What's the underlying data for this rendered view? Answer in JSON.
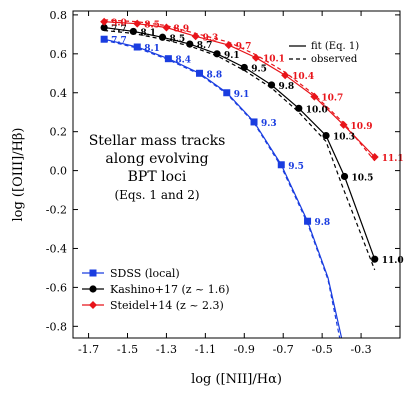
{
  "chart_data": {
    "type": "line",
    "xlabel": "log ([NII]/Hα)",
    "ylabel": "log ([OIII]/Hβ)",
    "xlim": [
      -1.78,
      -0.1
    ],
    "ylim": [
      -0.86,
      0.82
    ],
    "xticks": [
      "-1.7",
      "-1.5",
      "-1.3",
      "-1.1",
      "-0.9",
      "-0.7",
      "-0.5",
      "-0.3"
    ],
    "yticks": [
      "0.8",
      "0.6",
      "0.4",
      "0.2",
      "0.0",
      "-0.2",
      "-0.4",
      "-0.6",
      "-0.8"
    ],
    "annotation": [
      "Stellar mass tracks",
      "along evolving",
      "BPT loci"
    ],
    "annotation_sub": "(Eqs. 1 and 2)",
    "line_styles_legend": [
      {
        "label": "fit (Eq. 1)",
        "style": "solid"
      },
      {
        "label": "observed",
        "style": "dashed"
      }
    ],
    "legend_placement": "lower-left",
    "series": [
      {
        "name": "SDSS (local)",
        "color": "#1a3de0",
        "marker": "square",
        "points": [
          {
            "x": -1.62,
            "y": 0.675,
            "mass": "7.7"
          },
          {
            "x": -1.45,
            "y": 0.635,
            "mass": "8.1"
          },
          {
            "x": -1.29,
            "y": 0.575,
            "mass": "8.4"
          },
          {
            "x": -1.13,
            "y": 0.5,
            "mass": "8.8"
          },
          {
            "x": -0.99,
            "y": 0.4,
            "mass": "9.1"
          },
          {
            "x": -0.85,
            "y": 0.25,
            "mass": "9.3"
          },
          {
            "x": -0.71,
            "y": 0.03,
            "mass": "9.5"
          },
          {
            "x": -0.575,
            "y": -0.26,
            "mass": "9.8"
          }
        ],
        "fit_line": [
          {
            "x": -1.62,
            "y": 0.675
          },
          {
            "x": -1.45,
            "y": 0.635
          },
          {
            "x": -1.29,
            "y": 0.575
          },
          {
            "x": -1.13,
            "y": 0.5
          },
          {
            "x": -0.99,
            "y": 0.4
          },
          {
            "x": -0.85,
            "y": 0.25
          },
          {
            "x": -0.71,
            "y": 0.03
          },
          {
            "x": -0.575,
            "y": -0.26
          },
          {
            "x": -0.47,
            "y": -0.55
          },
          {
            "x": -0.4,
            "y": -0.86
          }
        ],
        "observed_line": [
          {
            "x": -1.62,
            "y": 0.67
          },
          {
            "x": -1.45,
            "y": 0.63
          },
          {
            "x": -1.29,
            "y": 0.57
          },
          {
            "x": -1.13,
            "y": 0.495
          },
          {
            "x": -0.99,
            "y": 0.395
          },
          {
            "x": -0.85,
            "y": 0.245
          },
          {
            "x": -0.71,
            "y": 0.02
          },
          {
            "x": -0.575,
            "y": -0.27
          },
          {
            "x": -0.47,
            "y": -0.56
          },
          {
            "x": -0.41,
            "y": -0.86
          }
        ]
      },
      {
        "name": "Kashino+17 (z ~ 1.6)",
        "color": "#000000",
        "marker": "circle",
        "points": [
          {
            "x": -1.62,
            "y": 0.735,
            "mass": "7.7"
          },
          {
            "x": -1.47,
            "y": 0.715,
            "mass": "8.1"
          },
          {
            "x": -1.32,
            "y": 0.685,
            "mass": "8.5"
          },
          {
            "x": -1.18,
            "y": 0.65,
            "mass": "8.7"
          },
          {
            "x": -1.04,
            "y": 0.6,
            "mass": "9.1"
          },
          {
            "x": -0.9,
            "y": 0.53,
            "mass": "9.5"
          },
          {
            "x": -0.76,
            "y": 0.44,
            "mass": "9.8"
          },
          {
            "x": -0.62,
            "y": 0.32,
            "mass": "10.0"
          },
          {
            "x": -0.48,
            "y": 0.18,
            "mass": "10.3"
          },
          {
            "x": -0.385,
            "y": -0.03,
            "mass": "10.5"
          },
          {
            "x": -0.23,
            "y": -0.455,
            "mass": "11.0"
          }
        ],
        "fit_line": [
          {
            "x": -1.62,
            "y": 0.735
          },
          {
            "x": -1.47,
            "y": 0.715
          },
          {
            "x": -1.32,
            "y": 0.685
          },
          {
            "x": -1.18,
            "y": 0.65
          },
          {
            "x": -1.04,
            "y": 0.6
          },
          {
            "x": -0.9,
            "y": 0.53
          },
          {
            "x": -0.76,
            "y": 0.44
          },
          {
            "x": -0.62,
            "y": 0.32
          },
          {
            "x": -0.48,
            "y": 0.18
          },
          {
            "x": -0.385,
            "y": -0.03
          },
          {
            "x": -0.23,
            "y": -0.455
          }
        ],
        "observed_line": [
          {
            "x": -1.62,
            "y": 0.72
          },
          {
            "x": -1.47,
            "y": 0.705
          },
          {
            "x": -1.32,
            "y": 0.675
          },
          {
            "x": -1.18,
            "y": 0.64
          },
          {
            "x": -1.04,
            "y": 0.59
          },
          {
            "x": -0.9,
            "y": 0.515
          },
          {
            "x": -0.76,
            "y": 0.425
          },
          {
            "x": -0.62,
            "y": 0.3
          },
          {
            "x": -0.48,
            "y": 0.15
          },
          {
            "x": -0.4,
            "y": -0.07
          },
          {
            "x": -0.23,
            "y": -0.51
          }
        ]
      },
      {
        "name": "Steidel+14 (z ~ 2.3)",
        "color": "#e8141a",
        "marker": "diamond",
        "points": [
          {
            "x": -1.62,
            "y": 0.765,
            "mass": "9.0"
          },
          {
            "x": -1.45,
            "y": 0.755,
            "mass": "8.5"
          },
          {
            "x": -1.3,
            "y": 0.735,
            "mass": "8.9"
          },
          {
            "x": -1.15,
            "y": 0.69,
            "mass": "9.3"
          },
          {
            "x": -0.98,
            "y": 0.645,
            "mass": "9.7"
          },
          {
            "x": -0.84,
            "y": 0.58,
            "mass": "10.1"
          },
          {
            "x": -0.69,
            "y": 0.49,
            "mass": "10.4"
          },
          {
            "x": -0.54,
            "y": 0.38,
            "mass": "10.7"
          },
          {
            "x": -0.39,
            "y": 0.235,
            "mass": "10.9"
          },
          {
            "x": -0.23,
            "y": 0.07,
            "mass": "11.1"
          }
        ],
        "fit_line": [
          {
            "x": -1.62,
            "y": 0.765
          },
          {
            "x": -1.45,
            "y": 0.755
          },
          {
            "x": -1.3,
            "y": 0.735
          },
          {
            "x": -1.15,
            "y": 0.69
          },
          {
            "x": -0.98,
            "y": 0.645
          },
          {
            "x": -0.84,
            "y": 0.58
          },
          {
            "x": -0.69,
            "y": 0.49
          },
          {
            "x": -0.54,
            "y": 0.38
          },
          {
            "x": -0.39,
            "y": 0.235
          },
          {
            "x": -0.23,
            "y": 0.07
          }
        ],
        "observed_line": [
          {
            "x": -1.62,
            "y": 0.775
          },
          {
            "x": -1.45,
            "y": 0.765
          },
          {
            "x": -1.3,
            "y": 0.745
          },
          {
            "x": -1.15,
            "y": 0.705
          },
          {
            "x": -0.98,
            "y": 0.66
          },
          {
            "x": -0.84,
            "y": 0.595
          },
          {
            "x": -0.69,
            "y": 0.505
          },
          {
            "x": -0.54,
            "y": 0.39
          },
          {
            "x": -0.39,
            "y": 0.245
          },
          {
            "x": -0.23,
            "y": 0.05
          }
        ]
      }
    ]
  }
}
